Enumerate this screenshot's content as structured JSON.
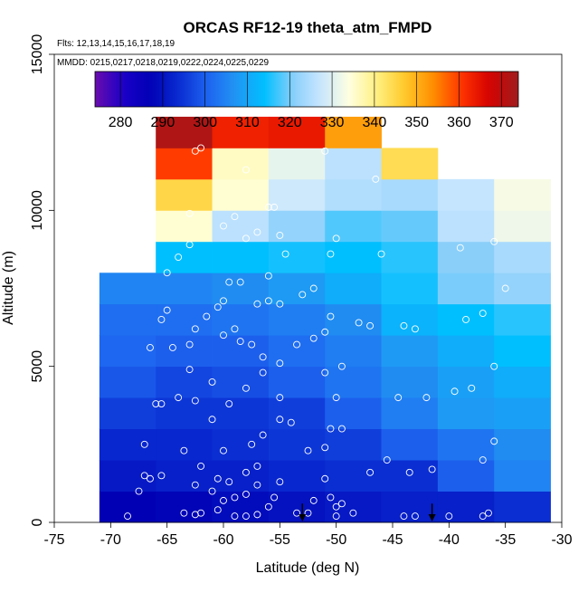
{
  "chart_data": {
    "type": "heatmap",
    "title": "ORCAS RF12-19 theta_atm_FMPD",
    "notes": {
      "flights": "Flts: 12,13,14,15,16,17,18,19",
      "dates": "MMDD: 0215,0217,0218,0219,0222,0224,0225,0229"
    },
    "xlabel": "Latitude (deg N)",
    "ylabel": "Altitude (m)",
    "xlim": [
      -75,
      -30
    ],
    "ylim": [
      0,
      15000
    ],
    "x_ticks": [
      -75,
      -70,
      -65,
      -60,
      -55,
      -50,
      -45,
      -40,
      -35,
      -30
    ],
    "y_ticks": [
      0,
      5000,
      10000,
      15000
    ],
    "colorbar": {
      "range": [
        274,
        374
      ],
      "ticks": [
        280,
        290,
        300,
        310,
        320,
        330,
        340,
        350,
        360,
        370
      ],
      "palette": [
        "#6a0dad",
        "#1a00c8",
        "#0000b4",
        "#0a2ed2",
        "#1e64f0",
        "#2196f3",
        "#00bfff",
        "#87cefa",
        "#c8e6ff",
        "#ffffe0",
        "#fff080",
        "#ffc828",
        "#ff8c00",
        "#ff3200",
        "#d20000",
        "#a01e1e"
      ]
    },
    "lat_bins": [
      -71,
      -66,
      -61,
      -56,
      -51,
      -46,
      -41,
      -36
    ],
    "lat_bin_width": 5,
    "alt_bin_height": 1000,
    "cells": [
      [
        -71,
        0,
        287
      ],
      [
        -66,
        0,
        288
      ],
      [
        -61,
        0,
        289
      ],
      [
        -56,
        0,
        290
      ],
      [
        -51,
        0,
        291
      ],
      [
        -46,
        0,
        292
      ],
      [
        -41,
        0,
        292
      ],
      [
        -36,
        0,
        294
      ],
      [
        -71,
        1000,
        291
      ],
      [
        -66,
        1000,
        292
      ],
      [
        -61,
        1000,
        292
      ],
      [
        -56,
        1000,
        293
      ],
      [
        -51,
        1000,
        294
      ],
      [
        -46,
        1000,
        294
      ],
      [
        -41,
        1000,
        300
      ],
      [
        -36,
        1000,
        305
      ],
      [
        -71,
        2000,
        293
      ],
      [
        -66,
        2000,
        293
      ],
      [
        -61,
        2000,
        294
      ],
      [
        -56,
        2000,
        295
      ],
      [
        -51,
        2000,
        296
      ],
      [
        -46,
        2000,
        300
      ],
      [
        -41,
        2000,
        303
      ],
      [
        -36,
        2000,
        306
      ],
      [
        -71,
        3000,
        296
      ],
      [
        -66,
        3000,
        295
      ],
      [
        -61,
        3000,
        295
      ],
      [
        -56,
        3000,
        296
      ],
      [
        -51,
        3000,
        300
      ],
      [
        -46,
        3000,
        304
      ],
      [
        -41,
        3000,
        308
      ],
      [
        -36,
        3000,
        309
      ],
      [
        -71,
        4000,
        299
      ],
      [
        -66,
        4000,
        297
      ],
      [
        -61,
        4000,
        298
      ],
      [
        -56,
        4000,
        300
      ],
      [
        -51,
        4000,
        303
      ],
      [
        -46,
        4000,
        306
      ],
      [
        -41,
        4000,
        309
      ],
      [
        -36,
        4000,
        311
      ],
      [
        -71,
        5000,
        301
      ],
      [
        -66,
        5000,
        300
      ],
      [
        -61,
        5000,
        300
      ],
      [
        -56,
        5000,
        302
      ],
      [
        -51,
        5000,
        304
      ],
      [
        -46,
        5000,
        308
      ],
      [
        -41,
        5000,
        311
      ],
      [
        -36,
        5000,
        314
      ],
      [
        -71,
        6000,
        302
      ],
      [
        -66,
        6000,
        302
      ],
      [
        -61,
        6000,
        303
      ],
      [
        -56,
        6000,
        304
      ],
      [
        -51,
        6000,
        306
      ],
      [
        -46,
        6000,
        312
      ],
      [
        -41,
        6000,
        314
      ],
      [
        -36,
        6000,
        316
      ],
      [
        -71,
        7000,
        305
      ],
      [
        -66,
        7000,
        305
      ],
      [
        -61,
        7000,
        306
      ],
      [
        -56,
        7000,
        308
      ],
      [
        -51,
        7000,
        311
      ],
      [
        -46,
        7000,
        315
      ],
      [
        -41,
        7000,
        320
      ],
      [
        -36,
        7000,
        322
      ],
      [
        -66,
        8000,
        314
      ],
      [
        -61,
        8000,
        314
      ],
      [
        -56,
        8000,
        315
      ],
      [
        -51,
        8000,
        314
      ],
      [
        -46,
        8000,
        316
      ],
      [
        -41,
        8000,
        321
      ],
      [
        -36,
        8000,
        324
      ],
      [
        -66,
        9000,
        335
      ],
      [
        -61,
        9000,
        326
      ],
      [
        -56,
        9000,
        322
      ],
      [
        -51,
        9000,
        318
      ],
      [
        -46,
        9000,
        319
      ],
      [
        -41,
        9000,
        326
      ],
      [
        -36,
        9000,
        332
      ],
      [
        -66,
        10000,
        345
      ],
      [
        -61,
        10000,
        335
      ],
      [
        -56,
        10000,
        328
      ],
      [
        -51,
        10000,
        325
      ],
      [
        -46,
        10000,
        324
      ],
      [
        -41,
        10000,
        327
      ],
      [
        -36,
        10000,
        333
      ],
      [
        -66,
        11000,
        360
      ],
      [
        -61,
        11000,
        336
      ],
      [
        -56,
        11000,
        331
      ],
      [
        -51,
        11000,
        326
      ],
      [
        -46,
        11000,
        344
      ],
      [
        -66,
        12000,
        372
      ],
      [
        -61,
        12000,
        363
      ],
      [
        -56,
        12000,
        364
      ],
      [
        -51,
        12000,
        352
      ]
    ],
    "arrows_lat": [
      -53,
      -41.5
    ],
    "sample_points": [
      [
        -68.5,
        200
      ],
      [
        -67.5,
        1000
      ],
      [
        -67,
        1500
      ],
      [
        -66.5,
        1400
      ],
      [
        -65.5,
        1500
      ],
      [
        -67,
        2500
      ],
      [
        -66,
        3800
      ],
      [
        -65.5,
        3800
      ],
      [
        -66.5,
        5600
      ],
      [
        -64.5,
        5600
      ],
      [
        -65.5,
        6500
      ],
      [
        -65,
        6800
      ],
      [
        -64,
        4000
      ],
      [
        -63,
        4900
      ],
      [
        -63,
        5700
      ],
      [
        -62.5,
        6200
      ],
      [
        -61.5,
        6600
      ],
      [
        -60.5,
        6900
      ],
      [
        -60,
        7100
      ],
      [
        -59.5,
        7700
      ],
      [
        -58.5,
        7700
      ],
      [
        -57,
        7000
      ],
      [
        -56,
        7100
      ],
      [
        -55,
        7000
      ],
      [
        -53,
        7300
      ],
      [
        -52,
        7500
      ],
      [
        -51,
        6100
      ],
      [
        -50.5,
        6600
      ],
      [
        -52,
        5900
      ],
      [
        -53.5,
        5700
      ],
      [
        -55,
        5100
      ],
      [
        -56.5,
        5300
      ],
      [
        -57.5,
        5700
      ],
      [
        -58.5,
        5800
      ],
      [
        -59,
        6200
      ],
      [
        -60,
        6000
      ],
      [
        -61,
        4500
      ],
      [
        -62.5,
        3900
      ],
      [
        -61,
        3300
      ],
      [
        -59.5,
        3800
      ],
      [
        -58,
        4300
      ],
      [
        -56.5,
        4800
      ],
      [
        -55,
        4000
      ],
      [
        -54,
        3200
      ],
      [
        -52.5,
        2300
      ],
      [
        -51,
        2400
      ],
      [
        -50.5,
        3000
      ],
      [
        -49.5,
        3000
      ],
      [
        -50,
        4000
      ],
      [
        -51,
        4800
      ],
      [
        -49.5,
        5000
      ],
      [
        -48,
        6400
      ],
      [
        -47,
        6300
      ],
      [
        -44,
        6300
      ],
      [
        -43,
        6200
      ],
      [
        -42,
        4000
      ],
      [
        -44.5,
        4000
      ],
      [
        -47,
        1600
      ],
      [
        -45.5,
        2000
      ],
      [
        -43.5,
        1600
      ],
      [
        -41.5,
        1700
      ],
      [
        -39.5,
        4200
      ],
      [
        -38,
        4300
      ],
      [
        -36,
        5000
      ],
      [
        -37,
        6700
      ],
      [
        -38.5,
        6500
      ],
      [
        -36,
        2600
      ],
      [
        -37,
        2000
      ],
      [
        -40,
        200
      ],
      [
        -43,
        200
      ],
      [
        -44,
        200
      ],
      [
        -50,
        200
      ],
      [
        -50,
        500
      ],
      [
        -52.5,
        300
      ],
      [
        -53.5,
        300
      ],
      [
        -55,
        1300
      ],
      [
        -55.5,
        800
      ],
      [
        -57,
        1200
      ],
      [
        -58,
        900
      ],
      [
        -59,
        800
      ],
      [
        -60,
        700
      ],
      [
        -61,
        1000
      ],
      [
        -62.5,
        1200
      ],
      [
        -63.5,
        2300
      ],
      [
        -62,
        1800
      ],
      [
        -60.5,
        1400
      ],
      [
        -59.5,
        1300
      ],
      [
        -58,
        1600
      ],
      [
        -57,
        1800
      ],
      [
        -56.5,
        2800
      ],
      [
        -55,
        3300
      ],
      [
        -57.5,
        2500
      ],
      [
        -60,
        2300
      ],
      [
        -62,
        300
      ],
      [
        -62.5,
        250
      ],
      [
        -63.5,
        300
      ],
      [
        -60.5,
        400
      ],
      [
        -59,
        200
      ],
      [
        -58,
        200
      ],
      [
        -57,
        250
      ],
      [
        -56,
        500
      ],
      [
        -48.5,
        300
      ],
      [
        -49.5,
        600
      ],
      [
        -50.5,
        800
      ],
      [
        -51,
        1400
      ],
      [
        -52,
        700
      ],
      [
        -36.5,
        300
      ],
      [
        -37,
        200
      ],
      [
        -62.5,
        11900
      ],
      [
        -62,
        12000
      ],
      [
        -58,
        11300
      ],
      [
        -51,
        11900
      ],
      [
        -46.5,
        11000
      ],
      [
        -63,
        9900
      ],
      [
        -56,
        10100
      ],
      [
        -55.5,
        10100
      ],
      [
        -59,
        9800
      ],
      [
        -55,
        9200
      ],
      [
        -54.5,
        8600
      ],
      [
        -50,
        9100
      ],
      [
        -50.5,
        8600
      ],
      [
        -46,
        8600
      ],
      [
        -64,
        8500
      ],
      [
        -63,
        8900
      ],
      [
        -65,
        8000
      ],
      [
        -60,
        9500
      ],
      [
        -39,
        8800
      ],
      [
        -35,
        7500
      ],
      [
        -36,
        9000
      ],
      [
        -57,
        9300
      ],
      [
        -58,
        9100
      ],
      [
        -56,
        7900
      ]
    ]
  }
}
